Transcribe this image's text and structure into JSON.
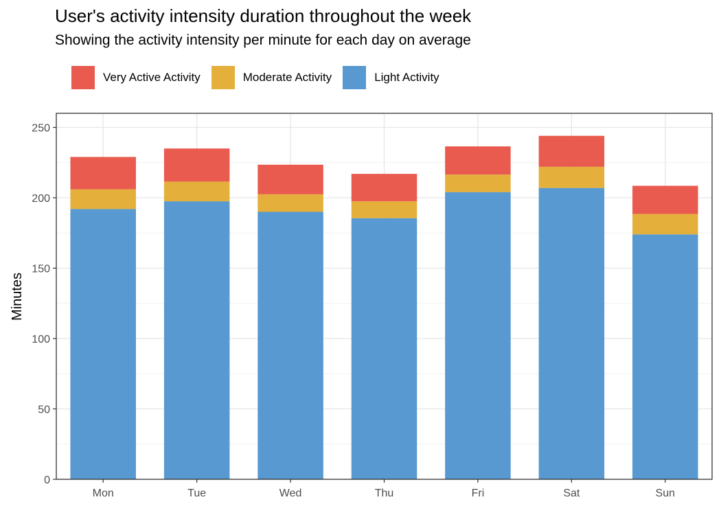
{
  "chart_data": {
    "type": "bar",
    "stacked": true,
    "title": "User's activity intensity duration throughout the week",
    "subtitle": "Showing the activity intensity per minute for each day on average",
    "xlabel": "",
    "ylabel": "Minutes",
    "ylim": [
      0,
      260
    ],
    "yticks": [
      0,
      50,
      100,
      150,
      200,
      250
    ],
    "legend_position": "top-left",
    "grid": true,
    "categories": [
      "Mon",
      "Tue",
      "Wed",
      "Thu",
      "Fri",
      "Sat",
      "Sun"
    ],
    "series": [
      {
        "name": "Light Activity",
        "color": "#5799D0",
        "values": [
          192,
          197.5,
          190,
          185.5,
          204,
          207,
          174
        ]
      },
      {
        "name": "Moderate Activity",
        "color": "#E5AF3B",
        "values": [
          14,
          14,
          12.5,
          12,
          12.5,
          15,
          14.5
        ]
      },
      {
        "name": "Very Active Activity",
        "color": "#E95B4F",
        "values": [
          23,
          23.5,
          21,
          19.5,
          20,
          22,
          20
        ]
      }
    ],
    "legend_order": [
      "Very Active Activity",
      "Moderate Activity",
      "Light Activity"
    ]
  }
}
